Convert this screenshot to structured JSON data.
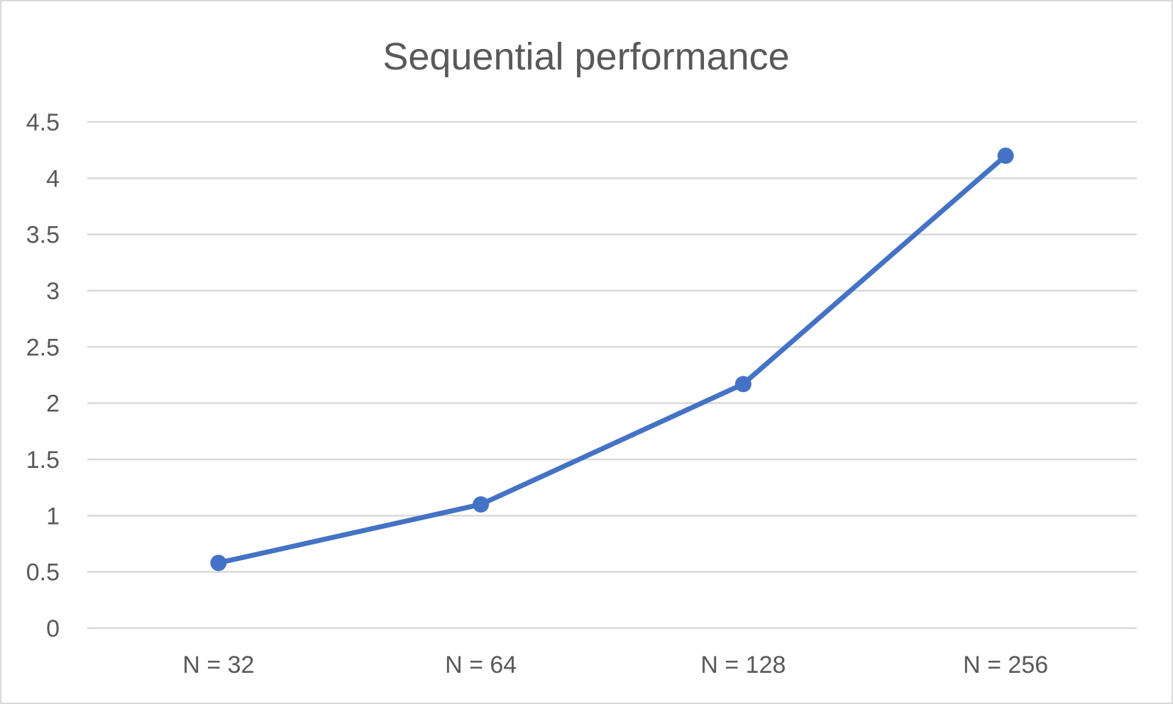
{
  "chart_data": {
    "type": "line",
    "title": "Sequential performance",
    "xlabel": "",
    "ylabel": "",
    "categories": [
      "N = 32",
      "N = 64",
      "N = 128",
      "N = 256"
    ],
    "series": [
      {
        "values": [
          0.58,
          1.1,
          2.17,
          4.2
        ]
      }
    ],
    "ylim": [
      0,
      4.5
    ],
    "yticks": [
      "0",
      "0.5",
      "1",
      "1.5",
      "2",
      "2.5",
      "3",
      "3.5",
      "4",
      "4.5"
    ],
    "ytick_values": [
      0,
      0.5,
      1,
      1.5,
      2,
      2.5,
      3,
      3.5,
      4,
      4.5
    ],
    "grid": true,
    "legend": "none",
    "colors": {
      "series": "#4472c4",
      "grid": "#d9d9d9",
      "text": "#595959",
      "border": "#d9d9d9"
    }
  }
}
